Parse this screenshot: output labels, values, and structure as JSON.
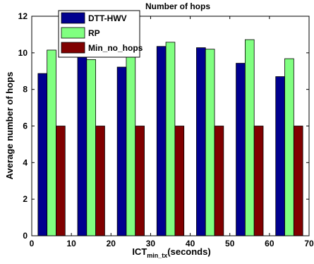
{
  "chart_data": {
    "type": "bar",
    "title": "Number of hops",
    "xlabel_main": "ICT",
    "xlabel_sub": "min_tx",
    "xlabel_suffix": "(seconds)",
    "ylabel": "Average number of hops",
    "x": [
      5,
      15,
      25,
      35,
      45,
      55,
      65
    ],
    "xlim": [
      0,
      70
    ],
    "ylim": [
      0,
      12
    ],
    "xticks": [
      "0",
      "10",
      "20",
      "30",
      "40",
      "50",
      "60",
      "70"
    ],
    "yticks": [
      "0",
      "2",
      "4",
      "6",
      "8",
      "10",
      "12"
    ],
    "legend_position": "top-left",
    "grid": false,
    "series": [
      {
        "name": "DTT-HWV",
        "color": "#00008f",
        "values": [
          8.87,
          9.85,
          9.22,
          10.35,
          10.28,
          9.43,
          8.7
        ]
      },
      {
        "name": "RP",
        "color": "#80ff80",
        "values": [
          10.15,
          9.63,
          9.78,
          10.58,
          10.2,
          10.72,
          9.68
        ]
      },
      {
        "name": "Min_no_hops",
        "color": "#800000",
        "values": [
          6,
          6,
          6,
          6,
          6,
          6,
          6
        ]
      }
    ]
  }
}
